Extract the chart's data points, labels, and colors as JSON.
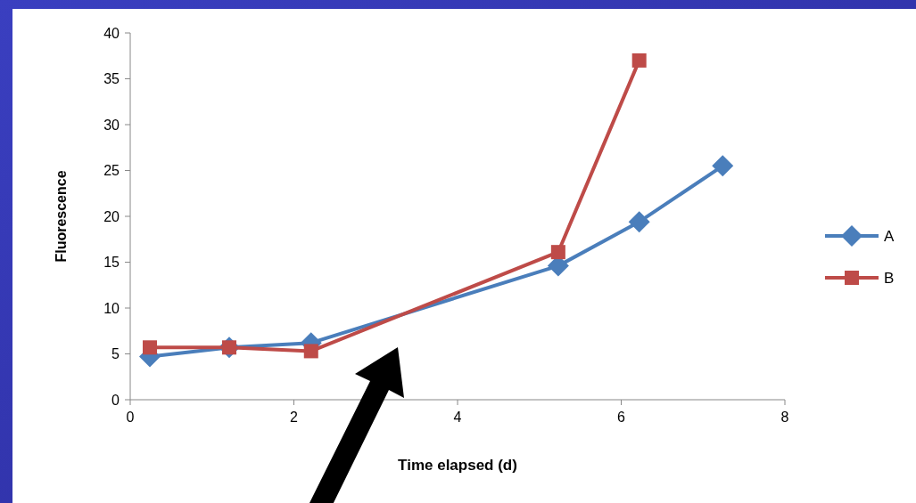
{
  "chart_data": {
    "type": "line",
    "xlabel": "Time elapsed (d)",
    "ylabel": "Fluorescence",
    "xlim": [
      0,
      8
    ],
    "xticks": [
      0,
      2,
      4,
      6,
      8
    ],
    "ylim": [
      0,
      40
    ],
    "yticks": [
      0,
      5,
      10,
      15,
      20,
      25,
      30,
      35,
      40
    ],
    "grid": false,
    "legend": "right",
    "line_style": "solid",
    "series": [
      {
        "name": "A",
        "color": "#4a7ebb",
        "marker": "diamond",
        "x": [
          0.24,
          1.21,
          2.21,
          5.23,
          6.22,
          7.24
        ],
        "values": [
          4.7,
          5.7,
          6.2,
          14.6,
          19.4,
          25.5
        ]
      },
      {
        "name": "B",
        "color": "#be4b48",
        "marker": "square",
        "x": [
          0.24,
          1.21,
          2.21,
          5.23,
          6.22
        ],
        "values": [
          5.7,
          5.7,
          5.3,
          16.1,
          37.0
        ]
      }
    ]
  }
}
